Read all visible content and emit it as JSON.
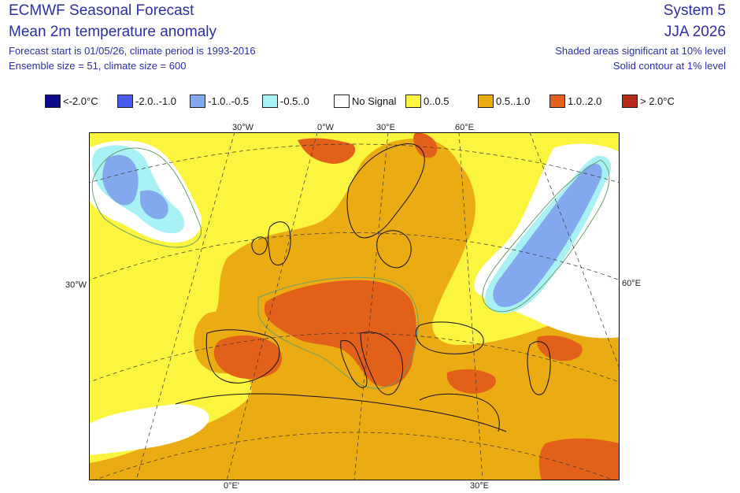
{
  "header": {
    "title": "ECMWF Seasonal Forecast",
    "subtitle": "Mean 2m temperature anomaly",
    "forecast_info": "Forecast start is 01/05/26, climate period is 1993-2016",
    "ensemble_info": "Ensemble size = 51, climate size = 600",
    "system": "System 5",
    "season": "JJA 2026",
    "shading_note": "Shaded areas significant at 10% level",
    "contour_note": "Solid contour at 1% level"
  },
  "legend": [
    {
      "label": "<-2.0°C",
      "color": "#0a0a8a"
    },
    {
      "label": "-2.0..-1.0",
      "color": "#4a5cf0"
    },
    {
      "label": "-1.0..-0.5",
      "color": "#82a9ee"
    },
    {
      "label": "-0.5..0",
      "color": "#a8f1f4"
    },
    {
      "label": "No Signal",
      "color": "#ffffff"
    },
    {
      "label": "0..0.5",
      "color": "#fbf53f"
    },
    {
      "label": "0.5..1.0",
      "color": "#ebab12"
    },
    {
      "label": "1.0..2.0",
      "color": "#e2601a"
    },
    {
      "label": "> 2.0°C",
      "color": "#b52a1a"
    }
  ],
  "axes": {
    "top": [
      "30°W",
      "0°W",
      "30°E",
      "60°E"
    ],
    "left": "30°W",
    "right": "60°E",
    "bottom": [
      "0°E'",
      "30°E"
    ]
  },
  "colors": {
    "background_ocean": "#fbf53f",
    "warm": "#ebab12",
    "hot": "#e2601a",
    "cold": "#82a9ee",
    "cool": "#a8f1f4",
    "coastline": "#111111",
    "contour": "#6aa06a",
    "gridline": "#333333"
  }
}
